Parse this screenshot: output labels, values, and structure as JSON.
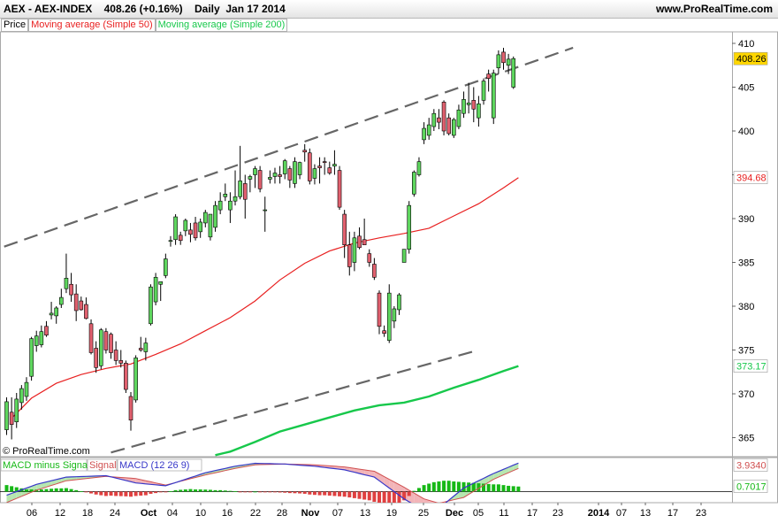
{
  "header": {
    "instrument": "AEX - AEX-INDEX",
    "last": "408.26 (+0.16%)",
    "period": "Daily",
    "date": "Jan 17 2014",
    "site": "www.ProRealTime.com"
  },
  "legend": {
    "price": "Price",
    "ma50": "Moving average (Simple 50)",
    "ma200": "Moving average (Simple 200)"
  },
  "copyright": "© ProRealTime.com",
  "colors": {
    "up": "#5ed65e",
    "down": "#e0606e",
    "ma50": "#e82020",
    "ma200": "#17c84b",
    "trend": "#666666",
    "macd": "#3737c8",
    "signal": "#d05050",
    "hist": "#16b816",
    "hist_neg": "#e04040",
    "last_label_bg": "#ffd700"
  },
  "chart_data": [
    {
      "type": "candlestick",
      "x_labels": [
        "06",
        "12",
        "18",
        "24",
        "Oct",
        "04",
        "10",
        "16",
        "22",
        "28",
        "Nov",
        "07",
        "13",
        "19",
        "25",
        "Dec",
        "05",
        "11",
        "17",
        "23",
        "2014",
        "07",
        "13",
        "17",
        "23"
      ],
      "ylim": [
        363,
        411
      ],
      "y_ticks": [
        365,
        370,
        375,
        380,
        385,
        390,
        395,
        400,
        405,
        410
      ],
      "grid": false,
      "candles": [
        {
          "o": 365.9,
          "h": 369.6,
          "l": 365.3,
          "c": 369.1
        },
        {
          "o": 367.9,
          "h": 369.6,
          "l": 364.8,
          "c": 366.5
        },
        {
          "o": 366.8,
          "h": 370.1,
          "l": 366.1,
          "c": 369.4
        },
        {
          "o": 369.0,
          "h": 371.0,
          "l": 368.2,
          "c": 370.6
        },
        {
          "o": 369.7,
          "h": 371.9,
          "l": 369.2,
          "c": 371.3
        },
        {
          "o": 372.0,
          "h": 376.5,
          "l": 371.5,
          "c": 376.3
        },
        {
          "o": 375.5,
          "h": 377.2,
          "l": 374.8,
          "c": 376.6
        },
        {
          "o": 375.6,
          "h": 377.8,
          "l": 375.3,
          "c": 377.1
        },
        {
          "o": 377.7,
          "h": 378.3,
          "l": 376.5,
          "c": 376.7
        },
        {
          "o": 379.0,
          "h": 380.5,
          "l": 378.5,
          "c": 379.2
        },
        {
          "o": 378.9,
          "h": 380.0,
          "l": 378.0,
          "c": 379.8
        },
        {
          "o": 380.2,
          "h": 382.0,
          "l": 379.8,
          "c": 381.0
        },
        {
          "o": 382.0,
          "h": 386.0,
          "l": 381.5,
          "c": 383.2
        },
        {
          "o": 382.5,
          "h": 383.8,
          "l": 380.5,
          "c": 381.3
        },
        {
          "o": 381.4,
          "h": 382.5,
          "l": 378.3,
          "c": 379.5
        },
        {
          "o": 380.6,
          "h": 381.1,
          "l": 379.5,
          "c": 379.6
        },
        {
          "o": 380.2,
          "h": 381.0,
          "l": 378.5,
          "c": 378.6
        },
        {
          "o": 378.0,
          "h": 378.5,
          "l": 374.5,
          "c": 374.7
        },
        {
          "o": 375.2,
          "h": 376.0,
          "l": 372.4,
          "c": 373.0
        },
        {
          "o": 373.2,
          "h": 377.5,
          "l": 372.8,
          "c": 377.3
        },
        {
          "o": 377.1,
          "h": 377.5,
          "l": 374.6,
          "c": 375.0
        },
        {
          "o": 376.8,
          "h": 377.0,
          "l": 374.0,
          "c": 374.7
        },
        {
          "o": 375.0,
          "h": 376.0,
          "l": 373.3,
          "c": 373.8
        },
        {
          "o": 373.8,
          "h": 375.0,
          "l": 373.0,
          "c": 373.5
        },
        {
          "o": 373.5,
          "h": 373.8,
          "l": 370.1,
          "c": 370.5
        },
        {
          "o": 369.7,
          "h": 370.2,
          "l": 365.8,
          "c": 367.0
        },
        {
          "o": 369.3,
          "h": 374.4,
          "l": 369.0,
          "c": 374.1
        },
        {
          "o": 375.2,
          "h": 376.5,
          "l": 374.8,
          "c": 375.0
        },
        {
          "o": 374.8,
          "h": 376.4,
          "l": 373.8,
          "c": 375.8
        },
        {
          "o": 378.0,
          "h": 382.5,
          "l": 377.8,
          "c": 382.2
        },
        {
          "o": 380.5,
          "h": 383.8,
          "l": 380.1,
          "c": 383.3
        },
        {
          "o": 382.5,
          "h": 382.8,
          "l": 380.6,
          "c": 382.8
        },
        {
          "o": 383.5,
          "h": 386.0,
          "l": 383.2,
          "c": 385.4
        },
        {
          "o": 387.5,
          "h": 388.0,
          "l": 386.8,
          "c": 387.5
        },
        {
          "o": 387.6,
          "h": 390.5,
          "l": 387.0,
          "c": 390.2
        },
        {
          "o": 388.1,
          "h": 388.5,
          "l": 387.0,
          "c": 387.5
        },
        {
          "o": 388.6,
          "h": 390.0,
          "l": 388.0,
          "c": 389.8
        },
        {
          "o": 388.7,
          "h": 389.5,
          "l": 387.3,
          "c": 388.2
        },
        {
          "o": 389.5,
          "h": 390.2,
          "l": 387.5,
          "c": 387.8
        },
        {
          "o": 388.5,
          "h": 390.0,
          "l": 387.8,
          "c": 389.6
        },
        {
          "o": 389.5,
          "h": 391.0,
          "l": 389.0,
          "c": 390.7
        },
        {
          "o": 387.9,
          "h": 390.5,
          "l": 387.5,
          "c": 390.5
        },
        {
          "o": 389.0,
          "h": 392.0,
          "l": 388.5,
          "c": 391.5
        },
        {
          "o": 391.0,
          "h": 393.0,
          "l": 390.5,
          "c": 392.0
        },
        {
          "o": 392.5,
          "h": 394.0,
          "l": 392.0,
          "c": 392.8
        },
        {
          "o": 391.0,
          "h": 393.0,
          "l": 389.5,
          "c": 392.0
        },
        {
          "o": 392.0,
          "h": 395.5,
          "l": 391.5,
          "c": 392.5
        },
        {
          "o": 392.5,
          "h": 398.3,
          "l": 392.2,
          "c": 394.3
        },
        {
          "o": 394.0,
          "h": 395.0,
          "l": 390.0,
          "c": 392.2
        },
        {
          "o": 394.5,
          "h": 395.0,
          "l": 393.0,
          "c": 394.8
        },
        {
          "o": 395.0,
          "h": 396.0,
          "l": 393.5,
          "c": 395.7
        },
        {
          "o": 395.5,
          "h": 396.0,
          "l": 393.0,
          "c": 393.4
        },
        {
          "o": 391.0,
          "h": 392.5,
          "l": 388.5,
          "c": 391.0
        },
        {
          "o": 394.5,
          "h": 395.5,
          "l": 394.0,
          "c": 394.7
        },
        {
          "o": 394.8,
          "h": 395.8,
          "l": 394.0,
          "c": 395.2
        },
        {
          "o": 395.0,
          "h": 396.0,
          "l": 394.0,
          "c": 394.8
        },
        {
          "o": 395.1,
          "h": 396.8,
          "l": 394.5,
          "c": 396.6
        },
        {
          "o": 395.7,
          "h": 396.0,
          "l": 393.5,
          "c": 394.4
        },
        {
          "o": 394.0,
          "h": 397.0,
          "l": 393.5,
          "c": 396.5
        },
        {
          "o": 395.0,
          "h": 396.5,
          "l": 394.5,
          "c": 396.4
        },
        {
          "o": 397.8,
          "h": 398.5,
          "l": 396.5,
          "c": 397.6
        },
        {
          "o": 397.5,
          "h": 398.0,
          "l": 393.9,
          "c": 394.3
        },
        {
          "o": 394.6,
          "h": 396.2,
          "l": 393.9,
          "c": 395.7
        },
        {
          "o": 396.0,
          "h": 397.0,
          "l": 394.0,
          "c": 395.8
        },
        {
          "o": 396.5,
          "h": 397.0,
          "l": 395.0,
          "c": 396.4
        },
        {
          "o": 395.8,
          "h": 396.5,
          "l": 395.0,
          "c": 395.2
        },
        {
          "o": 396.0,
          "h": 397.8,
          "l": 395.0,
          "c": 396.2
        },
        {
          "o": 395.5,
          "h": 396.0,
          "l": 391.0,
          "c": 391.3
        },
        {
          "o": 390.5,
          "h": 391.0,
          "l": 385.5,
          "c": 387.0
        },
        {
          "o": 387.0,
          "h": 388.5,
          "l": 383.5,
          "c": 384.5
        },
        {
          "o": 385.0,
          "h": 388.5,
          "l": 384.0,
          "c": 387.8
        },
        {
          "o": 388.0,
          "h": 389.0,
          "l": 386.5,
          "c": 386.7
        },
        {
          "o": 387.6,
          "h": 390.0,
          "l": 387.0,
          "c": 387.0
        },
        {
          "o": 386.0,
          "h": 386.5,
          "l": 384.5,
          "c": 385.0
        },
        {
          "o": 384.8,
          "h": 385.5,
          "l": 383.0,
          "c": 383.3
        },
        {
          "o": 381.5,
          "h": 381.8,
          "l": 376.8,
          "c": 377.7
        },
        {
          "o": 377.2,
          "h": 377.8,
          "l": 376.5,
          "c": 376.9
        },
        {
          "o": 376.1,
          "h": 382.5,
          "l": 375.8,
          "c": 381.5
        },
        {
          "o": 378.3,
          "h": 380.0,
          "l": 377.5,
          "c": 379.7
        },
        {
          "o": 379.6,
          "h": 381.5,
          "l": 379.0,
          "c": 381.3
        },
        {
          "o": 385.0,
          "h": 386.5,
          "l": 385.0,
          "c": 386.5
        },
        {
          "o": 386.5,
          "h": 392.0,
          "l": 386.0,
          "c": 391.5
        },
        {
          "o": 392.8,
          "h": 395.5,
          "l": 392.5,
          "c": 395.3
        },
        {
          "o": 395.0,
          "h": 397.0,
          "l": 394.8,
          "c": 396.5
        },
        {
          "o": 399.0,
          "h": 401.0,
          "l": 398.5,
          "c": 400.3
        },
        {
          "o": 399.5,
          "h": 401.5,
          "l": 399.0,
          "c": 400.7
        },
        {
          "o": 400.5,
          "h": 402.5,
          "l": 400.0,
          "c": 402.0
        },
        {
          "o": 401.5,
          "h": 402.5,
          "l": 400.2,
          "c": 401.0
        },
        {
          "o": 403.3,
          "h": 403.5,
          "l": 399.5,
          "c": 400.0
        },
        {
          "o": 401.5,
          "h": 402.0,
          "l": 399.5,
          "c": 399.7
        },
        {
          "o": 399.5,
          "h": 401.5,
          "l": 399.2,
          "c": 401.3
        },
        {
          "o": 400.5,
          "h": 403.0,
          "l": 400.2,
          "c": 402.4
        },
        {
          "o": 402.0,
          "h": 404.5,
          "l": 401.5,
          "c": 403.6
        },
        {
          "o": 403.0,
          "h": 405.5,
          "l": 402.0,
          "c": 403.2
        },
        {
          "o": 403.5,
          "h": 405.0,
          "l": 401.0,
          "c": 402.5
        },
        {
          "o": 401.5,
          "h": 404.0,
          "l": 400.5,
          "c": 403.1
        },
        {
          "o": 403.5,
          "h": 406.0,
          "l": 403.0,
          "c": 405.7
        },
        {
          "o": 406.5,
          "h": 407.0,
          "l": 404.5,
          "c": 406.0
        },
        {
          "o": 401.5,
          "h": 407.0,
          "l": 400.8,
          "c": 406.6
        },
        {
          "o": 407.2,
          "h": 409.2,
          "l": 406.5,
          "c": 408.7
        },
        {
          "o": 409.0,
          "h": 409.5,
          "l": 407.0,
          "c": 407.8
        },
        {
          "o": 407.5,
          "h": 408.8,
          "l": 406.5,
          "c": 408.2
        },
        {
          "o": 405.0,
          "h": 408.5,
          "l": 404.8,
          "c": 408.26
        }
      ],
      "ma50": {
        "name": "Moving average (Simple 50)",
        "last": "394.68",
        "points": [
          [
            1,
            367.2
          ],
          [
            5,
            369.5
          ],
          [
            10,
            371.2
          ],
          [
            15,
            372.2
          ],
          [
            20,
            372.9
          ],
          [
            25,
            373.4
          ],
          [
            30,
            374.5
          ],
          [
            35,
            375.7
          ],
          [
            40,
            377.2
          ],
          [
            45,
            378.7
          ],
          [
            50,
            380.6
          ],
          [
            55,
            383.0
          ],
          [
            60,
            384.9
          ],
          [
            65,
            386.3
          ],
          [
            70,
            387.2
          ],
          [
            75,
            387.8
          ],
          [
            80,
            388.3
          ],
          [
            85,
            388.9
          ],
          [
            90,
            390.3
          ],
          [
            95,
            391.7
          ],
          [
            100,
            393.5
          ],
          [
            103,
            394.68
          ]
        ]
      },
      "ma200": {
        "name": "Moving average (Simple 200)",
        "last": "373.17",
        "points": [
          [
            42,
            363.0
          ],
          [
            45,
            363.4
          ],
          [
            50,
            364.5
          ],
          [
            55,
            365.7
          ],
          [
            60,
            366.5
          ],
          [
            65,
            367.3
          ],
          [
            70,
            368.1
          ],
          [
            75,
            368.7
          ],
          [
            80,
            369.0
          ],
          [
            85,
            369.7
          ],
          [
            90,
            370.7
          ],
          [
            95,
            371.6
          ],
          [
            100,
            372.6
          ],
          [
            103,
            373.17
          ]
        ]
      },
      "trendlines": [
        {
          "from": [
            -0.5,
            386.8
          ],
          "to": [
            114,
            409.5
          ]
        },
        {
          "from": [
            21,
            363.3
          ],
          "to": [
            95,
            375.0
          ]
        }
      ],
      "last_price": "408.26"
    },
    {
      "type": "bar",
      "title": "MACD (12 26 9)",
      "legend": [
        "MACD minus Signal",
        "Signal",
        "MACD (12 26 9)"
      ],
      "value_labels": [
        "3.9340",
        "0.7017"
      ],
      "histogram": [
        0.9,
        0.75,
        0.6,
        0.45,
        0.3,
        0.3,
        0.28,
        0.3,
        0.35,
        0.4,
        0.45,
        0.45,
        0.48,
        0.35,
        0.2,
        0.05,
        -0.1,
        -0.25,
        -0.4,
        -0.5,
        -0.6,
        -0.55,
        -0.6,
        -0.62,
        -0.65,
        -0.7,
        -0.6,
        -0.55,
        -0.5,
        -0.3,
        -0.2,
        -0.1,
        -0.05,
        0.05,
        0.2,
        0.25,
        0.3,
        0.35,
        0.3,
        0.3,
        0.28,
        0.25,
        0.2,
        0.2,
        0.15,
        0.1,
        0.05,
        -0.05,
        -0.05,
        -0.03,
        0.0,
        -0.05,
        -0.1,
        -0.1,
        -0.1,
        -0.12,
        -0.15,
        -0.2,
        -0.22,
        -0.25,
        -0.3,
        -0.4,
        -0.45,
        -0.5,
        -0.5,
        -0.55,
        -0.6,
        -0.65,
        -0.7,
        -0.8,
        -0.9,
        -1.0,
        -1.1,
        -1.2,
        -1.4,
        -1.6,
        -1.7,
        -1.9,
        -1.8,
        -1.6,
        -1.2,
        -0.6,
        0.1,
        0.5,
        0.9,
        1.1,
        1.3,
        1.4,
        1.5,
        1.5,
        1.4,
        1.35,
        1.3,
        1.25,
        1.2,
        1.15,
        1.1,
        1.05,
        1.0,
        1.0,
        0.9,
        0.8,
        0.75,
        0.7017
      ],
      "macd": [
        [
          0,
          -0.5
        ],
        [
          6,
          1.0
        ],
        [
          12,
          2.0
        ],
        [
          20,
          2.2
        ],
        [
          26,
          1.2
        ],
        [
          32,
          0.8
        ],
        [
          40,
          2.6
        ],
        [
          46,
          3.5
        ],
        [
          50,
          3.9
        ],
        [
          56,
          3.8
        ],
        [
          62,
          3.5
        ],
        [
          68,
          3.0
        ],
        [
          74,
          2.0
        ],
        [
          80,
          -1.0
        ],
        [
          84,
          -2.6
        ],
        [
          87,
          -2.3
        ],
        [
          92,
          0.5
        ],
        [
          98,
          2.5
        ],
        [
          103,
          3.93
        ]
      ],
      "signal": [
        [
          0,
          -1.5
        ],
        [
          6,
          0.2
        ],
        [
          12,
          1.5
        ],
        [
          20,
          2.1
        ],
        [
          26,
          1.8
        ],
        [
          32,
          0.9
        ],
        [
          40,
          2.3
        ],
        [
          46,
          3.2
        ],
        [
          50,
          3.7
        ],
        [
          56,
          3.8
        ],
        [
          62,
          3.7
        ],
        [
          68,
          3.4
        ],
        [
          74,
          2.8
        ],
        [
          80,
          0.6
        ],
        [
          84,
          -1.0
        ],
        [
          87,
          -1.6
        ],
        [
          92,
          -0.8
        ],
        [
          98,
          1.7
        ],
        [
          103,
          3.2
        ]
      ]
    }
  ]
}
